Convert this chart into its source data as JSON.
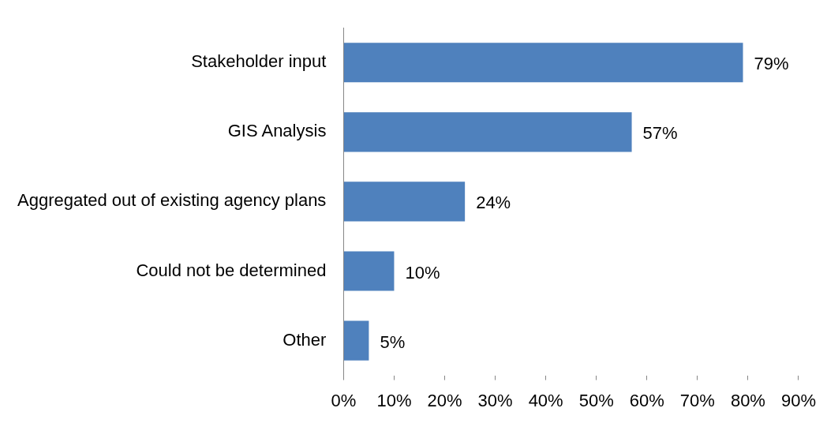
{
  "chart_data": {
    "type": "bar",
    "orientation": "horizontal",
    "categories": [
      "Stakeholder input",
      "GIS Analysis",
      "Aggregated out of existing agency plans",
      "Could not be determined",
      "Other"
    ],
    "series": [
      {
        "color": "#4f81bd",
        "values": [
          79,
          57,
          24,
          10,
          5
        ],
        "value_labels": [
          "79%",
          "57%",
          "24%",
          "10%",
          "5%"
        ]
      }
    ],
    "xlim": [
      0,
      90
    ],
    "xticks": [
      {
        "value": 0,
        "label": "0%"
      },
      {
        "value": 10,
        "label": "10%"
      },
      {
        "value": 20,
        "label": "20%"
      },
      {
        "value": 30,
        "label": "30%"
      },
      {
        "value": 40,
        "label": "40%"
      },
      {
        "value": 50,
        "label": "50%"
      },
      {
        "value": 60,
        "label": "60%"
      },
      {
        "value": 70,
        "label": "70%"
      },
      {
        "value": 80,
        "label": "80%"
      },
      {
        "value": 90,
        "label": "90%"
      }
    ],
    "grid": false,
    "legend": false
  }
}
